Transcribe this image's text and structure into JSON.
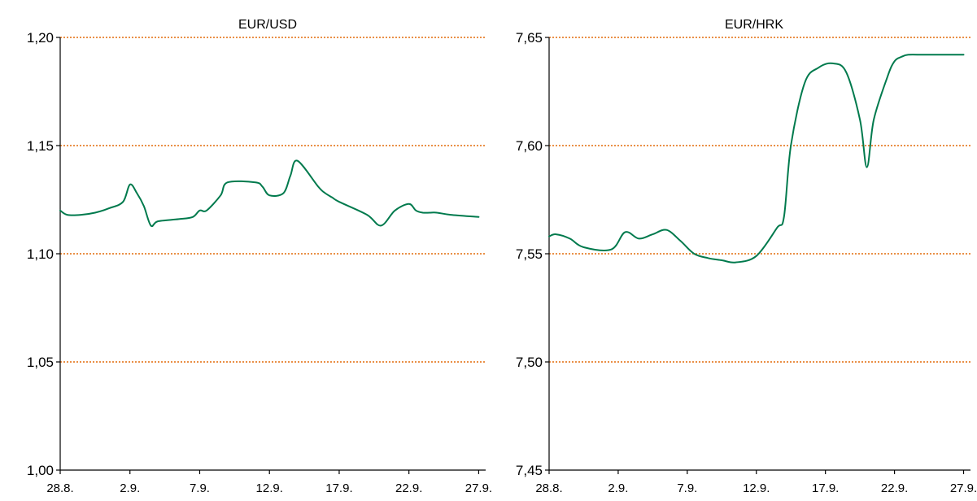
{
  "chart_data": [
    {
      "type": "line",
      "title": "EUR/USD",
      "ylim": [
        1.0,
        1.2
      ],
      "yticks": [
        "1,00",
        "1,05",
        "1,10",
        "1,15",
        "1,20"
      ],
      "ytick_values": [
        1.0,
        1.05,
        1.1,
        1.15,
        1.2
      ],
      "xticks": [
        "28.8.",
        "2.9.",
        "7.9.",
        "12.9.",
        "17.9.",
        "22.9.",
        "27.9."
      ],
      "x_day_of_period": [
        0,
        5,
        10,
        15,
        20,
        25,
        30
      ],
      "grid": "horizontal-dotted",
      "series": [
        {
          "x": [
            0,
            0.5,
            1.5,
            2.5,
            3.5,
            4.5,
            5,
            5.5,
            6,
            6.5,
            7,
            8.5,
            9.5,
            10,
            10.5,
            11.5,
            12,
            14,
            14.5,
            15,
            16,
            16.5,
            17,
            18.5,
            19,
            19.5,
            20,
            22,
            23,
            24,
            25,
            25.5,
            26,
            26.5,
            27,
            28,
            30
          ],
          "values": [
            1.12,
            1.118,
            1.118,
            1.119,
            1.121,
            1.124,
            1.132,
            1.128,
            1.122,
            1.113,
            1.115,
            1.116,
            1.117,
            1.12,
            1.12,
            1.127,
            1.133,
            1.133,
            1.131,
            1.127,
            1.128,
            1.136,
            1.143,
            1.131,
            1.128,
            1.126,
            1.124,
            1.118,
            1.113,
            1.12,
            1.123,
            1.12,
            1.119,
            1.119,
            1.119,
            1.118,
            1.117
          ]
        }
      ]
    },
    {
      "type": "line",
      "title": "EUR/HRK",
      "ylim": [
        7.45,
        7.65
      ],
      "yticks": [
        "7,45",
        "7,50",
        "7,55",
        "7,60",
        "7,65"
      ],
      "ytick_values": [
        7.45,
        7.5,
        7.55,
        7.6,
        7.65
      ],
      "xticks": [
        "28.8.",
        "2.9.",
        "7.9.",
        "12.9.",
        "17.9.",
        "22.9.",
        "27.9."
      ],
      "x_day_of_period": [
        0,
        5,
        10,
        15,
        20,
        25,
        30
      ],
      "grid": "horizontal-dotted",
      "series": [
        {
          "x": [
            0,
            0.5,
            1.5,
            2.5,
            4.5,
            5.5,
            6.5,
            7.5,
            8.5,
            9.5,
            10.5,
            11.5,
            12.5,
            13.5,
            15,
            16.5,
            17,
            17.5,
            18.5,
            19.5,
            20.5,
            21.5,
            22.5,
            23,
            23.5,
            24.5,
            25,
            25.5,
            26,
            27,
            28,
            30
          ],
          "values": [
            7.558,
            7.559,
            7.557,
            7.553,
            7.552,
            7.56,
            7.557,
            7.559,
            7.561,
            7.556,
            7.55,
            7.548,
            7.547,
            7.546,
            7.549,
            7.562,
            7.567,
            7.6,
            7.629,
            7.636,
            7.638,
            7.634,
            7.612,
            7.59,
            7.612,
            7.632,
            7.639,
            7.641,
            7.642,
            7.642,
            7.642,
            7.642
          ]
        }
      ]
    }
  ]
}
